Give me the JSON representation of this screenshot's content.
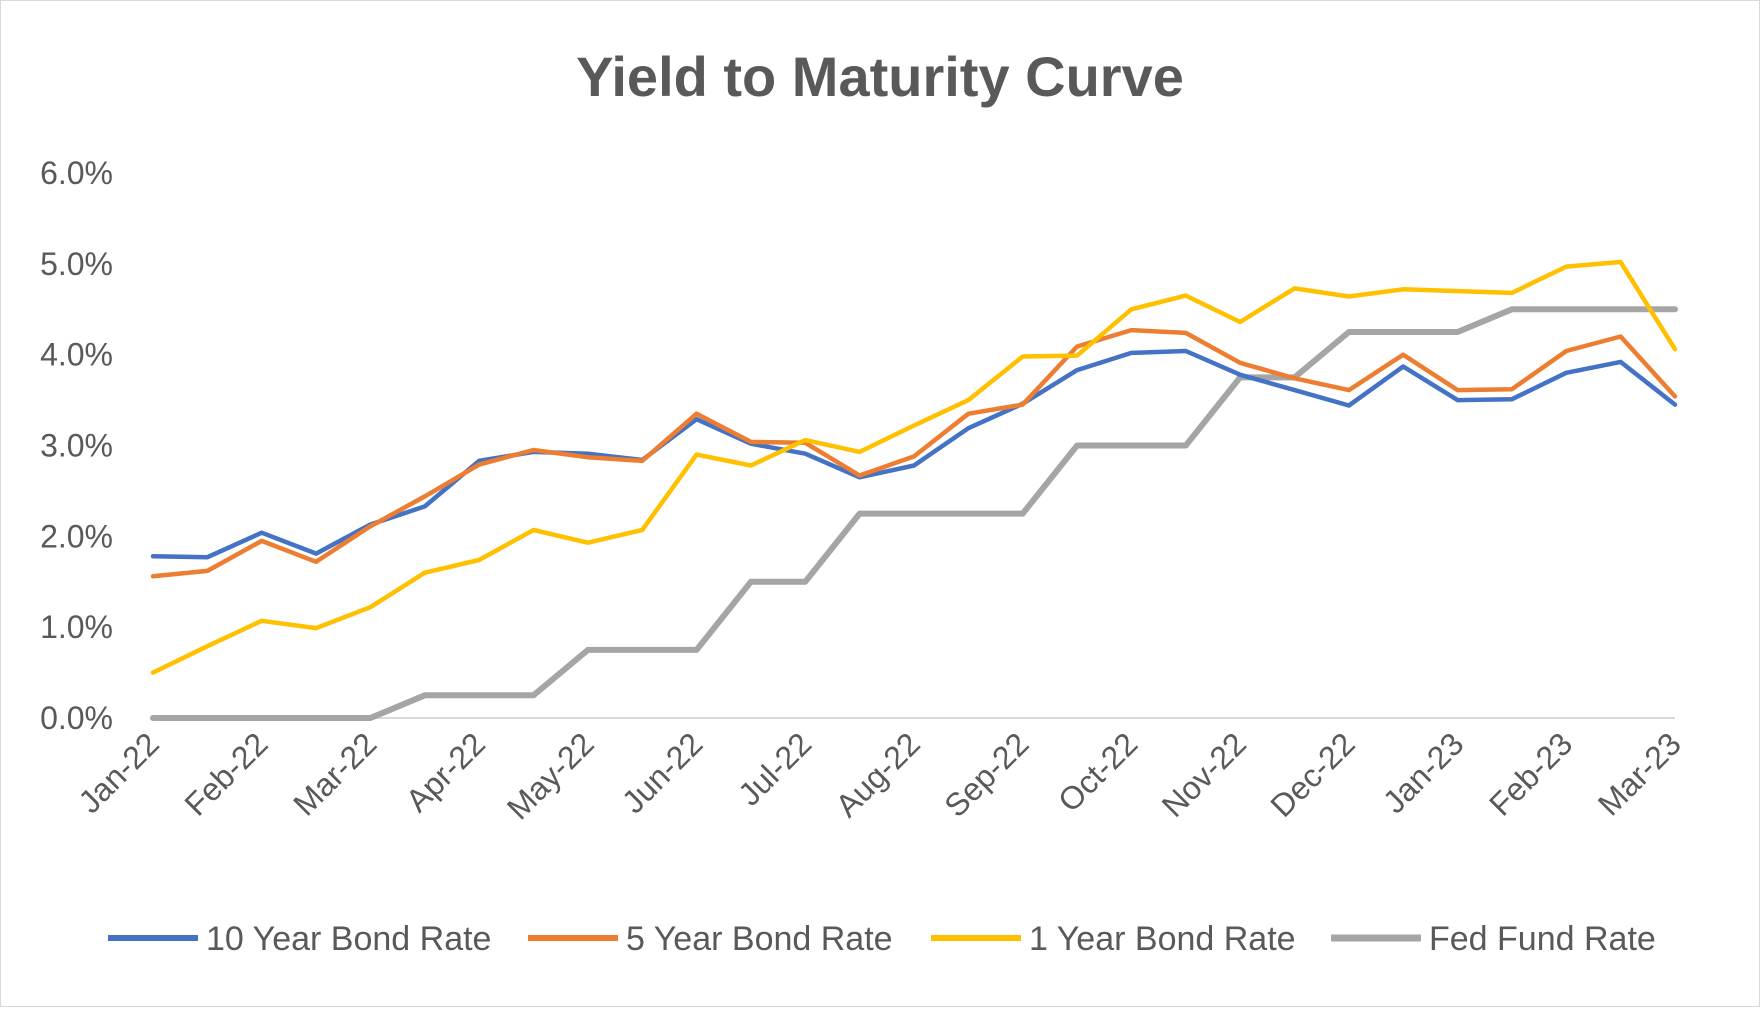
{
  "chart_data": {
    "type": "line",
    "title": "Yield to Maturity Curve",
    "xlabel": "",
    "ylabel": "",
    "ylim": [
      0,
      6
    ],
    "y_ticks": [
      "0.0%",
      "1.0%",
      "2.0%",
      "3.0%",
      "4.0%",
      "5.0%",
      "6.0%"
    ],
    "x_tick_labels": [
      "Jan-22",
      "Feb-22",
      "Mar-22",
      "Apr-22",
      "May-22",
      "Jun-22",
      "Jul-22",
      "Aug-22",
      "Sep-22",
      "Oct-22",
      "Nov-22",
      "Dec-22",
      "Jan-23",
      "Feb-23",
      "Mar-23"
    ],
    "points_per_month": 2,
    "grid": "horizontal-off",
    "legend_position": "bottom",
    "series": [
      {
        "name": "10 Year Bond Rate",
        "color": "#4472C4",
        "values": [
          1.78,
          1.77,
          2.04,
          1.81,
          2.13,
          2.33,
          2.83,
          2.93,
          2.91,
          2.84,
          3.29,
          3.02,
          2.91,
          2.65,
          2.78,
          3.19,
          3.46,
          3.83,
          4.02,
          4.04,
          3.78,
          3.61,
          3.44,
          3.87,
          3.5,
          3.51,
          3.8,
          3.92,
          3.45
        ]
      },
      {
        "name": "5 Year Bond Rate",
        "color": "#ED7D31",
        "values": [
          1.56,
          1.62,
          1.95,
          1.72,
          2.11,
          2.44,
          2.79,
          2.95,
          2.87,
          2.83,
          3.35,
          3.04,
          3.03,
          2.67,
          2.88,
          3.35,
          3.45,
          4.09,
          4.27,
          4.24,
          3.91,
          3.74,
          3.61,
          4.0,
          3.61,
          3.62,
          4.04,
          4.2,
          3.54
        ]
      },
      {
        "name": "1 Year Bond Rate",
        "color": "#FFC000",
        "values": [
          0.5,
          0.79,
          1.07,
          0.99,
          1.22,
          1.6,
          1.74,
          2.07,
          1.93,
          2.07,
          2.9,
          2.78,
          3.06,
          2.93,
          3.22,
          3.5,
          3.98,
          3.99,
          4.5,
          4.65,
          4.36,
          4.73,
          4.64,
          4.72,
          4.7,
          4.68,
          4.97,
          5.02,
          4.06
        ]
      },
      {
        "name": "Fed Fund Rate",
        "color": "#A5A5A5",
        "values": [
          0.0,
          0.0,
          0.0,
          0.0,
          0.0,
          0.25,
          0.25,
          0.25,
          0.75,
          0.75,
          0.75,
          1.5,
          1.5,
          2.25,
          2.25,
          2.25,
          2.25,
          3.0,
          3.0,
          3.0,
          3.75,
          3.75,
          4.25,
          4.25,
          4.25,
          4.5,
          4.5,
          4.5,
          4.5
        ]
      }
    ]
  }
}
